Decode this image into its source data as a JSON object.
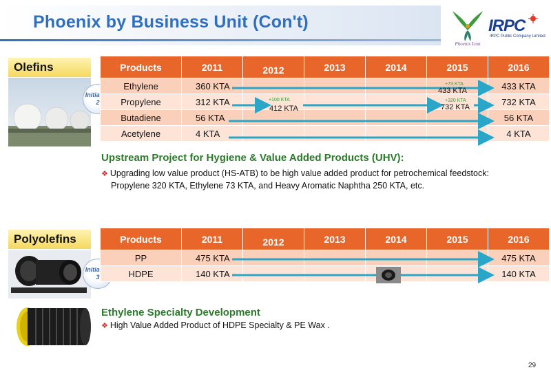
{
  "title": "Phoenix by Business Unit (Con't)",
  "logos": {
    "phoenix": "Phoenix Icon",
    "irpc_name": "IRPC",
    "irpc_subtitle": "IRPC Public Company Limited"
  },
  "colors": {
    "title_blue": "#2e6fc0",
    "header_orange": "#e8662a",
    "row_light": "#fde4d6",
    "row_dark": "#fbd0ba",
    "arrow_teal": "#2aa6c8",
    "heading_green": "#2c7a2c",
    "label_yellow": "#f5d860"
  },
  "olefins": {
    "label": "Olefins",
    "initiative_label": "Initiative",
    "initiative_number": "2",
    "headers": [
      "Products",
      "2011",
      "2012",
      "2013",
      "2014",
      "2015",
      "2016"
    ],
    "rows": [
      {
        "product": "Ethylene",
        "v2011": "360 KTA",
        "v2016": "433 KTA"
      },
      {
        "product": "Propylene",
        "v2011": "312 KTA",
        "v2016": "732 KTA"
      },
      {
        "product": "Butadiene",
        "v2011": "56 KTA",
        "v2016": "56 KTA"
      },
      {
        "product": "Acetylene",
        "v2011": "4 KTA",
        "v2016": "4 KTA"
      }
    ],
    "annotations": {
      "ethylene_2015_increase": "+73 KTA",
      "ethylene_2015_value": "433 KTA",
      "propylene_2012_increase": "+100 KTA",
      "propylene_2012_value": "412 KTA",
      "propylene_2015_increase": "+320 KTA",
      "propylene_2015_value": "732 KTA"
    },
    "heading": "Upstream Project for Hygiene & Value Added Products (UHV):",
    "bullet_line1": "Upgrading low value product (HS-ATB) to be high value added product for petrochemical feedstock:",
    "bullet_line2": "Propylene 320 KTA, Ethylene 73 KTA, and Heavy Aromatic Naphtha  250 KTA, etc."
  },
  "polyolefins": {
    "label": "Polyolefins",
    "initiative_label": "Initiative",
    "initiative_number": "3",
    "headers": [
      "Products",
      "2011",
      "2012",
      "2013",
      "2014",
      "2015",
      "2016"
    ],
    "rows": [
      {
        "product": "PP",
        "v2011": "475 KTA",
        "v2016": "475 KTA"
      },
      {
        "product": "HDPE",
        "v2011": "140 KTA",
        "v2016": "140 KTA"
      }
    ],
    "heading": "Ethylene Specialty Development",
    "bullet_line1": "High Value Added Product of HDPE Specialty & PE Wax ."
  },
  "page_number": "29"
}
